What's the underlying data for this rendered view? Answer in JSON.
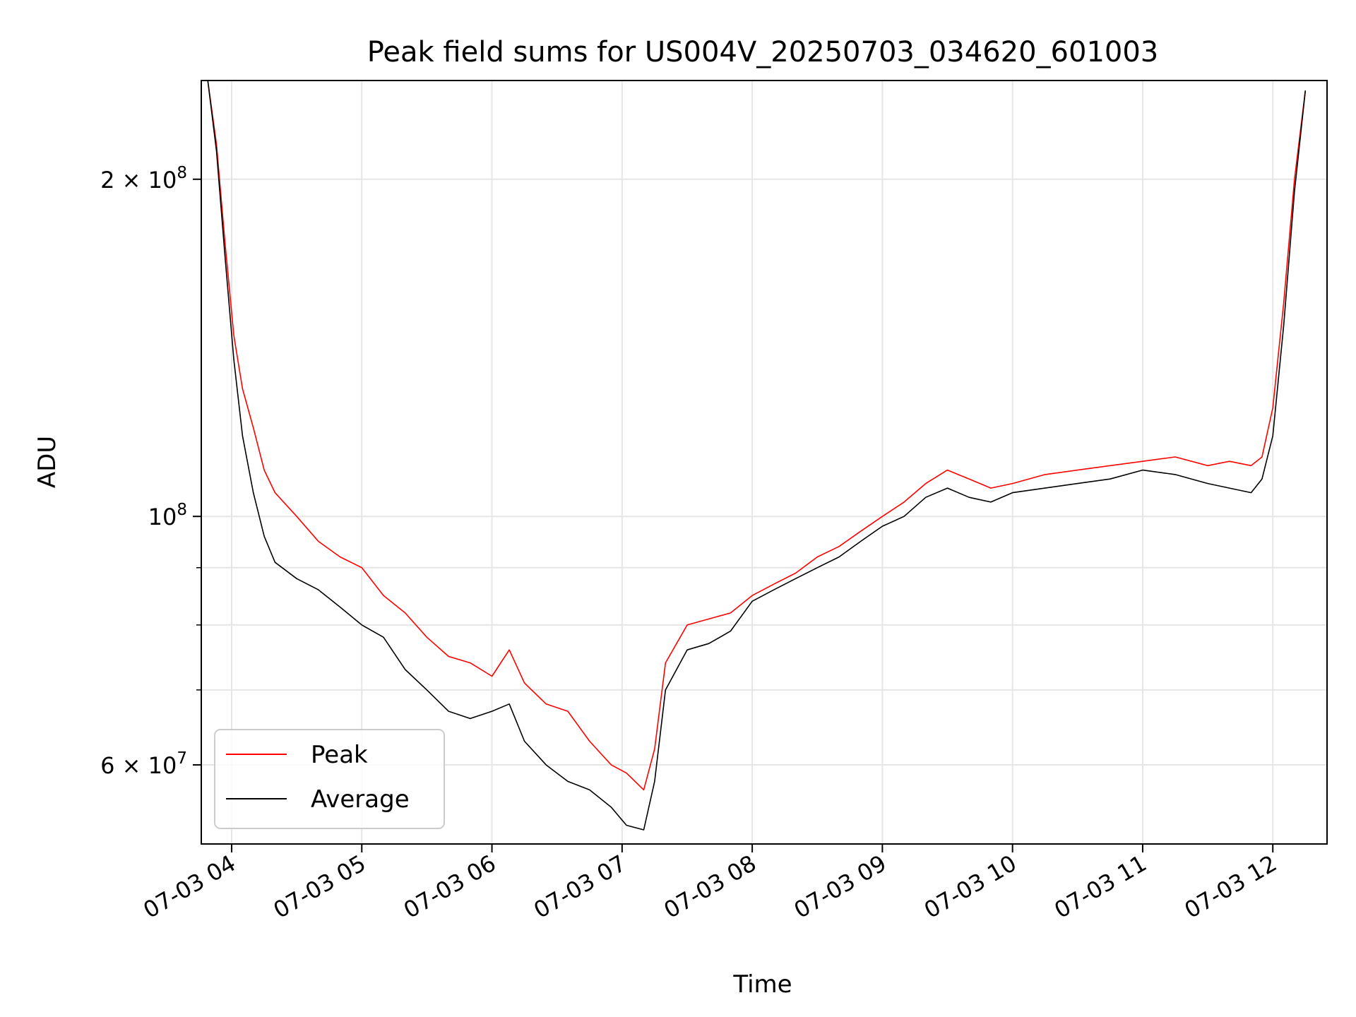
{
  "chart_data": {
    "type": "line",
    "title": "Peak field sums for US004V_20250703_034620_601003",
    "xlabel": "Time",
    "ylabel": "ADU",
    "yscale": "log",
    "grid": true,
    "legend_position": "lower-left",
    "xlim": [
      "07-03 03:46",
      "07-03 12:25"
    ],
    "ylim": [
      51000000,
      245000000
    ],
    "x_ticks": [
      "07-03 04",
      "07-03 05",
      "07-03 06",
      "07-03 07",
      "07-03 08",
      "07-03 09",
      "07-03 10",
      "07-03 11",
      "07-03 12"
    ],
    "y_major_ticks": [
      {
        "value": 200000000,
        "label_base": "2 × 10",
        "label_exp": "8"
      },
      {
        "value": 100000000,
        "label_base": "10",
        "label_exp": "8"
      },
      {
        "value": 60000000,
        "label_base": "6 × 10",
        "label_exp": "7"
      }
    ],
    "y_minor_ticks": [
      70000000,
      80000000,
      90000000
    ],
    "series": [
      {
        "name": "Peak",
        "color": "#ff0000",
        "x": [
          "07-03 03:49",
          "07-03 03:53",
          "07-03 03:57",
          "07-03 04:01",
          "07-03 04:05",
          "07-03 04:10",
          "07-03 04:15",
          "07-03 04:20",
          "07-03 04:30",
          "07-03 04:40",
          "07-03 04:50",
          "07-03 05:00",
          "07-03 05:10",
          "07-03 05:20",
          "07-03 05:30",
          "07-03 05:40",
          "07-03 05:50",
          "07-03 06:00",
          "07-03 06:08",
          "07-03 06:15",
          "07-03 06:25",
          "07-03 06:35",
          "07-03 06:45",
          "07-03 06:55",
          "07-03 07:02",
          "07-03 07:10",
          "07-03 07:15",
          "07-03 07:20",
          "07-03 07:30",
          "07-03 07:40",
          "07-03 07:50",
          "07-03 08:00",
          "07-03 08:10",
          "07-03 08:20",
          "07-03 08:30",
          "07-03 08:40",
          "07-03 08:50",
          "07-03 09:00",
          "07-03 09:10",
          "07-03 09:20",
          "07-03 09:30",
          "07-03 09:40",
          "07-03 09:50",
          "07-03 10:00",
          "07-03 10:15",
          "07-03 10:30",
          "07-03 10:45",
          "07-03 11:00",
          "07-03 11:15",
          "07-03 11:30",
          "07-03 11:40",
          "07-03 11:50",
          "07-03 11:55",
          "07-03 12:00",
          "07-03 12:05",
          "07-03 12:10",
          "07-03 12:15"
        ],
        "y": [
          245000000,
          215000000,
          175000000,
          145000000,
          130000000,
          120000000,
          110000000,
          105000000,
          100000000,
          95000000,
          92000000,
          90000000,
          85000000,
          82000000,
          78000000,
          75000000,
          74000000,
          72000000,
          76000000,
          71000000,
          68000000,
          67000000,
          63000000,
          60000000,
          59000000,
          57000000,
          62000000,
          74000000,
          80000000,
          81000000,
          82000000,
          85000000,
          87000000,
          89000000,
          92000000,
          94000000,
          97000000,
          100000000,
          103000000,
          107000000,
          110000000,
          108000000,
          106000000,
          107000000,
          109000000,
          110000000,
          111000000,
          112000000,
          113000000,
          111000000,
          112000000,
          111000000,
          113000000,
          125000000,
          155000000,
          200000000,
          240000000
        ]
      },
      {
        "name": "Average",
        "color": "#000000",
        "x": [
          "07-03 03:49",
          "07-03 03:53",
          "07-03 03:57",
          "07-03 04:01",
          "07-03 04:05",
          "07-03 04:10",
          "07-03 04:15",
          "07-03 04:20",
          "07-03 04:30",
          "07-03 04:40",
          "07-03 04:50",
          "07-03 05:00",
          "07-03 05:10",
          "07-03 05:20",
          "07-03 05:30",
          "07-03 05:40",
          "07-03 05:50",
          "07-03 06:00",
          "07-03 06:08",
          "07-03 06:15",
          "07-03 06:25",
          "07-03 06:35",
          "07-03 06:45",
          "07-03 06:55",
          "07-03 07:02",
          "07-03 07:10",
          "07-03 07:15",
          "07-03 07:20",
          "07-03 07:30",
          "07-03 07:40",
          "07-03 07:50",
          "07-03 08:00",
          "07-03 08:10",
          "07-03 08:20",
          "07-03 08:30",
          "07-03 08:40",
          "07-03 08:50",
          "07-03 09:00",
          "07-03 09:10",
          "07-03 09:20",
          "07-03 09:30",
          "07-03 09:40",
          "07-03 09:50",
          "07-03 10:00",
          "07-03 10:15",
          "07-03 10:30",
          "07-03 10:45",
          "07-03 11:00",
          "07-03 11:15",
          "07-03 11:30",
          "07-03 11:40",
          "07-03 11:50",
          "07-03 11:55",
          "07-03 12:00",
          "07-03 12:05",
          "07-03 12:10",
          "07-03 12:15"
        ],
        "y": [
          245000000,
          212000000,
          170000000,
          138000000,
          118000000,
          105000000,
          96000000,
          91000000,
          88000000,
          86000000,
          83000000,
          80000000,
          78000000,
          73000000,
          70000000,
          67000000,
          66000000,
          67000000,
          68000000,
          63000000,
          60000000,
          58000000,
          57000000,
          55000000,
          53000000,
          52500000,
          58000000,
          70000000,
          76000000,
          77000000,
          79000000,
          84000000,
          86000000,
          88000000,
          90000000,
          92000000,
          95000000,
          98000000,
          100000000,
          104000000,
          106000000,
          104000000,
          103000000,
          105000000,
          106000000,
          107000000,
          108000000,
          110000000,
          109000000,
          107000000,
          106000000,
          105000000,
          108000000,
          118000000,
          148000000,
          195000000,
          240000000
        ]
      }
    ]
  }
}
